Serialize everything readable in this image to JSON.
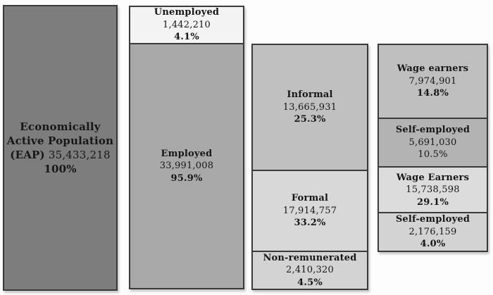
{
  "page": {
    "background": "#fdfdfd",
    "border_color": "#3a3a3a"
  },
  "chart_data": {
    "type": "bar",
    "subtype": "stacked-decomposition-columns",
    "description": "Economically Active Population broken down into employment status, sector, and worker type",
    "legend_position": "none",
    "grid": false,
    "columns": [
      {
        "name": "eap",
        "segments": [
          {
            "label": "Economically Active Population (EAP)",
            "label_line1": "Economically",
            "label_line2": "Active Population",
            "eap_prefix": "(EAP)",
            "value": 35433218,
            "value_text": "35,433,218",
            "percent": 100,
            "percent_text": "100%",
            "color": "#7d7d7d"
          }
        ]
      },
      {
        "name": "employment-status",
        "segments": [
          {
            "label": "Unemployed",
            "value": 1442210,
            "value_text": "1,442,210",
            "percent": 4.1,
            "percent_text": "4.1%",
            "color": "#f3f3f3"
          },
          {
            "label": "Employed",
            "value": 33991008,
            "value_text": "33,991,008",
            "percent": 95.9,
            "percent_text": "95.9%",
            "color": "#a9a9a9"
          }
        ]
      },
      {
        "name": "sector",
        "segments": [
          {
            "label": "Informal",
            "value": 13665931,
            "value_text": "13,665,931",
            "percent": 25.3,
            "percent_text": "25.3%",
            "color": "#c0c0c0"
          },
          {
            "label": "Formal",
            "value": 17914757,
            "value_text": "17,914,757",
            "percent": 33.2,
            "percent_text": "33.2%",
            "color": "#d8d8d8"
          },
          {
            "label": "Non-remunerated",
            "value": 2410320,
            "value_text": "2,410,320",
            "percent": 4.5,
            "percent_text": "4.5%",
            "color": "#d3d3d3"
          }
        ]
      },
      {
        "name": "worker-type",
        "segments": [
          {
            "label": "Wage earners",
            "value": 7974901,
            "value_text": "7,974,901",
            "percent": 14.8,
            "percent_text": "14.8%",
            "color": "#bfbfbf"
          },
          {
            "label": "Self-employed",
            "value": 5691030,
            "value_text": "5,691,030",
            "percent": 10.5,
            "percent_text": "10.5%",
            "color": "#b3b3b3"
          },
          {
            "label": "Wage Earners",
            "value": 15738598,
            "value_text": "15,738,598",
            "percent": 29.1,
            "percent_text": "29.1%",
            "color": "#dcdcdc"
          },
          {
            "label": "Self-employed",
            "value": 2176159,
            "value_text": "2,176,159",
            "percent": 4.0,
            "percent_text": "4.0%",
            "color": "#d3d3d3"
          }
        ]
      }
    ]
  }
}
